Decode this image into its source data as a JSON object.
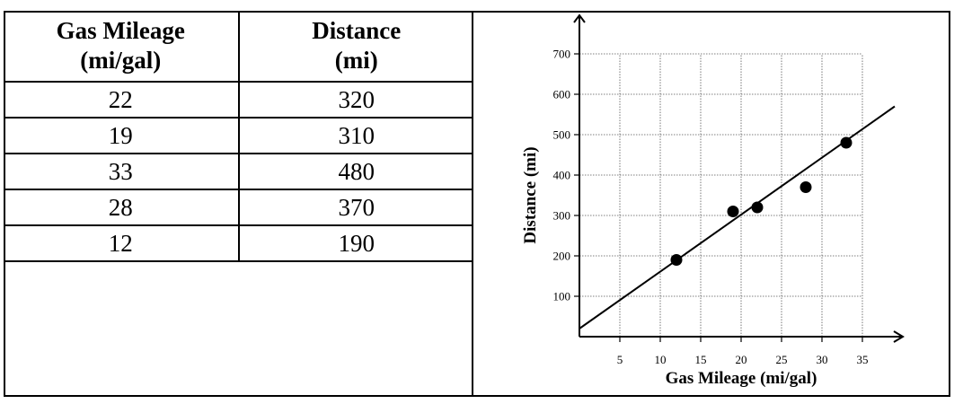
{
  "table": {
    "headers": [
      [
        "Gas Mileage",
        "(mi/gal)"
      ],
      [
        "Distance",
        "(mi)"
      ]
    ],
    "rows": [
      [
        "22",
        "320"
      ],
      [
        "19",
        "310"
      ],
      [
        "33",
        "480"
      ],
      [
        "28",
        "370"
      ],
      [
        "12",
        "190"
      ]
    ]
  },
  "chart_data": {
    "type": "scatter",
    "xlabel": "Gas Mileage (mi/gal)",
    "ylabel": "Distance (mi)",
    "xlim": [
      0,
      40
    ],
    "ylim": [
      0,
      700
    ],
    "x_ticks": [
      5,
      10,
      15,
      20,
      25,
      30,
      35
    ],
    "y_ticks": [
      100,
      200,
      300,
      400,
      500,
      600,
      700
    ],
    "grid": true,
    "points": [
      {
        "x": 22,
        "y": 320
      },
      {
        "x": 19,
        "y": 310
      },
      {
        "x": 33,
        "y": 480
      },
      {
        "x": 28,
        "y": 370
      },
      {
        "x": 12,
        "y": 190
      }
    ],
    "trend_line": {
      "x1": 0,
      "y1": 20,
      "x2": 39,
      "y2": 570
    }
  }
}
